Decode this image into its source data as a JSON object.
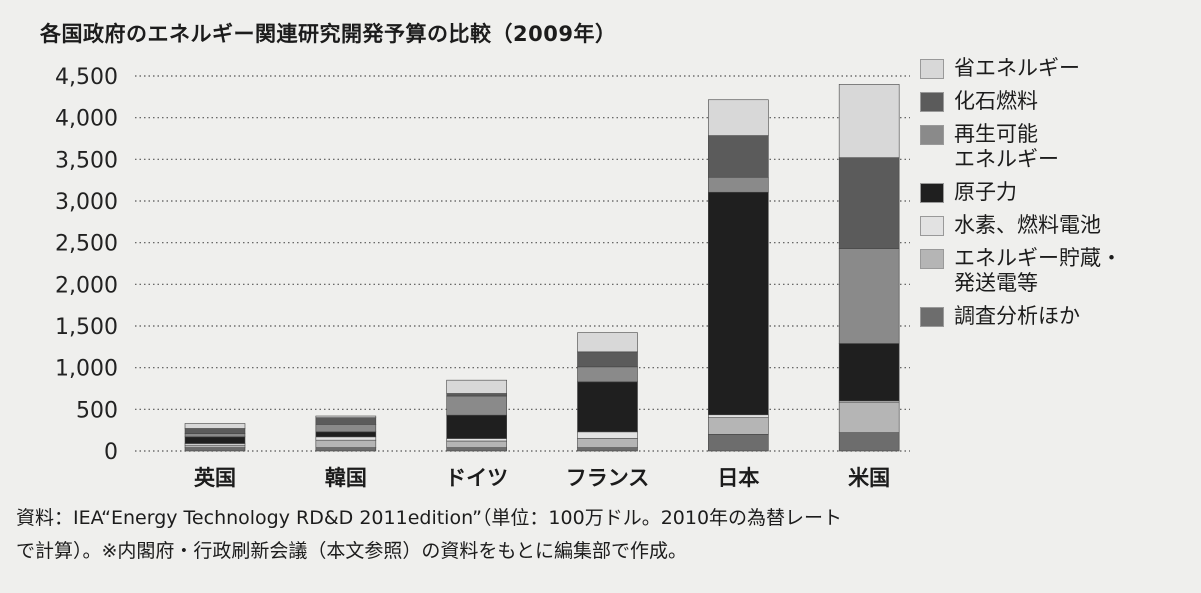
{
  "title": "各国政府のエネルギー関連研究開発予算の比較（2009年）",
  "chart_data": {
    "type": "bar",
    "stacked": true,
    "title": "各国政府のエネルギー関連研究開発予算の比較（2009年）",
    "xlabel": "",
    "ylabel": "",
    "categories": [
      "英国",
      "韓国",
      "ドイツ",
      "フランス",
      "日本",
      "米国"
    ],
    "ylim": [
      0,
      4500
    ],
    "yticks": [
      0,
      500,
      1000,
      1500,
      2000,
      2500,
      3000,
      3500,
      4000,
      4500
    ],
    "ytick_labels": [
      "0",
      "500",
      "1,000",
      "1,500",
      "2,000",
      "2,500",
      "3,000",
      "3,500",
      "4,000",
      "4,500"
    ],
    "grid": "horizontal dotted",
    "legend_position": "right",
    "series": [
      {
        "name": "調査分析ほか",
        "color": "#6d6d6d",
        "values": [
          40,
          40,
          40,
          40,
          200,
          220
        ]
      },
      {
        "name": "エネルギー貯蔵・発送電等",
        "color": "#b5b5b5",
        "values": [
          30,
          90,
          80,
          110,
          200,
          360
        ]
      },
      {
        "name": "水素、燃料電池",
        "color": "#e2e2e2",
        "values": [
          20,
          40,
          30,
          80,
          35,
          20
        ]
      },
      {
        "name": "原子力",
        "color": "#1f1f1f",
        "values": [
          80,
          60,
          280,
          600,
          2670,
          690
        ]
      },
      {
        "name": "再生可能エネルギー",
        "color": "#8a8a8a",
        "values": [
          40,
          90,
          230,
          180,
          180,
          1140
        ]
      },
      {
        "name": "化石燃料",
        "color": "#5b5b5b",
        "values": [
          60,
          80,
          30,
          180,
          500,
          1090
        ]
      },
      {
        "name": "省エネルギー",
        "color": "#d8d8d8",
        "values": [
          60,
          20,
          160,
          230,
          430,
          880
        ]
      }
    ]
  },
  "legend": {
    "items": [
      {
        "label": "省エネルギー",
        "color": "#d8d8d8"
      },
      {
        "label": "化石燃料",
        "color": "#5b5b5b"
      },
      {
        "label": "再生可能\nエネルギー",
        "color": "#8a8a8a"
      },
      {
        "label": "原子力",
        "color": "#1f1f1f"
      },
      {
        "label": "水素、燃料電池",
        "color": "#e2e2e2"
      },
      {
        "label": "エネルギー貯蔵・\n発送電等",
        "color": "#b5b5b5"
      },
      {
        "label": "調査分析ほか",
        "color": "#6d6d6d"
      }
    ]
  },
  "source": "資料：IEA“Energy Technology RD&D 2011edition”（単位：100万ドル。2010年の為替レート\nで計算）。※内閣府・行政刷新会議（本文参照）の資料をもとに編集部で作成。"
}
